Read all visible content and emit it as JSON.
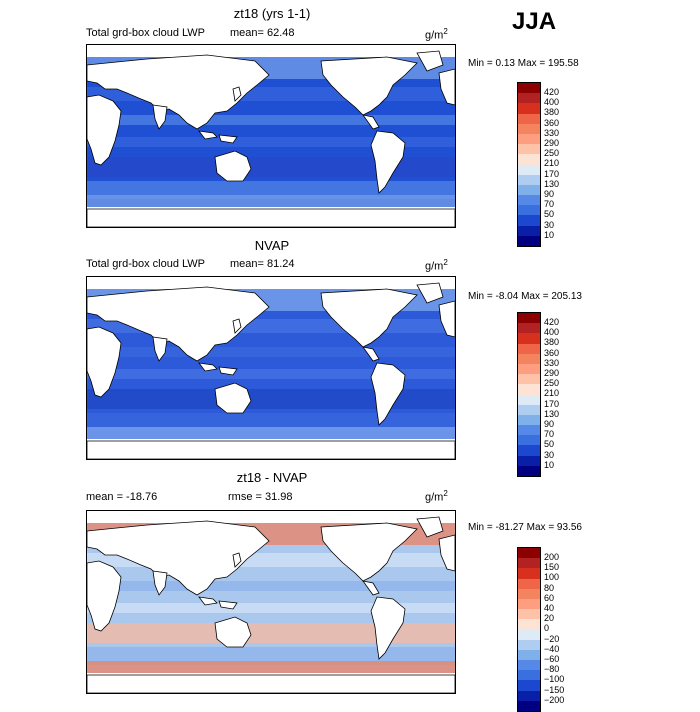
{
  "season": "JJA",
  "units": "g/m",
  "units_sup": "2",
  "panels": [
    {
      "title": "zt18 (yrs 1-1)",
      "sub_left": "Total grd-box cloud LWP",
      "sub_mid": "mean=  62.48",
      "minmax": "Min =   0.13 Max =  195.58",
      "colorbar": {
        "labels": [
          "420",
          "400",
          "380",
          "360",
          "330",
          "290",
          "250",
          "210",
          "170",
          "130",
          "90",
          "70",
          "50",
          "30",
          "10"
        ],
        "colors": [
          "#8b0000",
          "#b22222",
          "#d7301f",
          "#ef6548",
          "#f4845f",
          "#fc9e7f",
          "#fdc2a8",
          "#fde3d3",
          "#deebf7",
          "#aecdf0",
          "#7fb0ea",
          "#5688e8",
          "#3a6fe0",
          "#1c48cf",
          "#0a1fa8",
          "#000080"
        ]
      },
      "map_fill": [
        "#1f4fd3",
        "#3463dd",
        "#4d7fe6",
        "#2548c9",
        "#6f9ae9"
      ]
    },
    {
      "title": "NVAP",
      "sub_left": "Total grd-box cloud LWP",
      "sub_mid": "mean=  81.24",
      "minmax": "Min =  -8.04 Max =  205.13",
      "colorbar": {
        "labels": [
          "420",
          "400",
          "380",
          "360",
          "330",
          "290",
          "250",
          "210",
          "170",
          "130",
          "90",
          "70",
          "50",
          "30",
          "10"
        ],
        "colors": [
          "#8b0000",
          "#b22222",
          "#d7301f",
          "#ef6548",
          "#f4845f",
          "#fc9e7f",
          "#fdc2a8",
          "#fde3d3",
          "#deebf7",
          "#aecdf0",
          "#7fb0ea",
          "#5688e8",
          "#3a6fe0",
          "#1c48cf",
          "#0a1fa8",
          "#000080"
        ]
      },
      "map_fill": [
        "#2c5ad8",
        "#4572e3",
        "#3a66dd",
        "#1f47c6",
        "#7aa3ec"
      ]
    },
    {
      "title": "zt18 - NVAP",
      "sub_left": "mean = -18.76",
      "sub_mid": "rmse =  31.98",
      "minmax": "Min = -81.27 Max =   93.56",
      "colorbar": {
        "labels": [
          "200",
          "150",
          "100",
          "80",
          "60",
          "40",
          "20",
          "0",
          "−20",
          "−40",
          "−60",
          "−80",
          "−100",
          "−150",
          "−200"
        ],
        "colors": [
          "#8b0000",
          "#b22222",
          "#d7301f",
          "#ef6548",
          "#f4845f",
          "#fc9e7f",
          "#fdc2a8",
          "#fde3d3",
          "#deebf7",
          "#aecdf0",
          "#7fb0ea",
          "#5688e8",
          "#3a6fe0",
          "#1c48cf",
          "#0a1fa8",
          "#000080"
        ]
      },
      "map_fill": [
        "#aac8ee",
        "#cfe0f6",
        "#8fb4ea",
        "#f2b9a3",
        "#e9866a"
      ]
    }
  ]
}
